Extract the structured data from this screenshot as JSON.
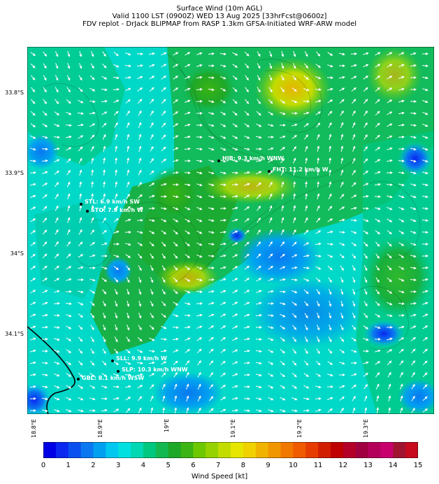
{
  "title": {
    "line1": "Surface Wind (10m AGL)",
    "line2": "Valid 1100 LST (0900Z) WED 13 Aug 2025 [33hrFcst@0600z]",
    "line3": "FDV replot - DrJack BLIPMAP from RASP 1.3km GFSA-Initiated WRF-ARW model"
  },
  "axes": {
    "y_ticks": [
      "33.8°S",
      "33.9°S",
      "34°S",
      "34.1°S"
    ],
    "x_ticks": [
      "18.8°E",
      "18.9°E",
      "19°E",
      "19.1°E",
      "19.2°E",
      "19.3°E"
    ]
  },
  "stations": [
    {
      "label": "HJB: 9.3 km/h WNW"
    },
    {
      "label": "FHT: 11.2 km/h W"
    },
    {
      "label": "STL: 6.9 km/h SW"
    },
    {
      "label": "STO: 7.9 km/h W"
    },
    {
      "label": "SLL: 9.9 km/h W"
    },
    {
      "label": "SLP: 10.3 km/h WNW"
    },
    {
      "label": "GBL: 8.1 km/h WSW"
    }
  ],
  "colorbar": {
    "label": "Wind Speed [kt]",
    "ticks": [
      "0",
      "1",
      "2",
      "3",
      "4",
      "5",
      "6",
      "7",
      "8",
      "9",
      "10",
      "11",
      "12",
      "13",
      "14",
      "15"
    ],
    "colors": [
      "#0000e6",
      "#0a28f0",
      "#0a50f0",
      "#0a78f0",
      "#00a0f0",
      "#00c8f0",
      "#00e0e0",
      "#00d8b4",
      "#00c880",
      "#14b850",
      "#1ea828",
      "#3cb414",
      "#6ec800",
      "#96d200",
      "#c3dc00",
      "#e6e600",
      "#f0d200",
      "#f0b400",
      "#f09600",
      "#f07800",
      "#f05a00",
      "#e63c00",
      "#d21e00",
      "#c00000",
      "#b40028",
      "#a00040",
      "#b4005a",
      "#c8006e",
      "#a01432",
      "#c80a1e"
    ]
  }
}
